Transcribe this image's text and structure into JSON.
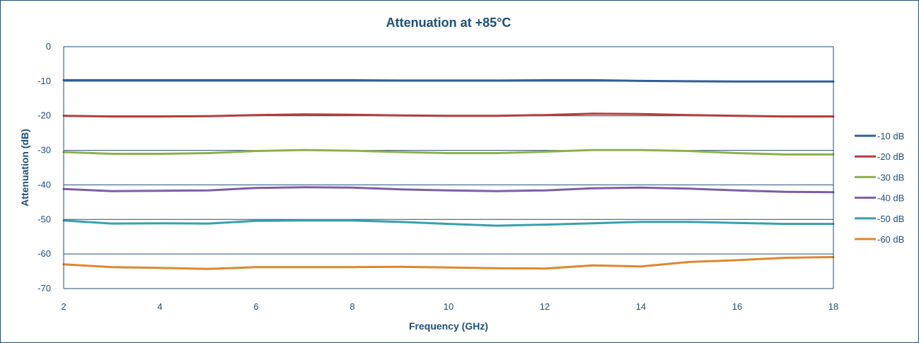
{
  "chart_data": {
    "type": "line",
    "title": "Attenuation at +85°C",
    "xlabel": "Frequency (GHz)",
    "ylabel": "Attenuation (dB)",
    "xlim": [
      2,
      18
    ],
    "ylim": [
      -70,
      0
    ],
    "xticks": [
      2,
      4,
      6,
      8,
      10,
      12,
      14,
      16,
      18
    ],
    "yticks": [
      0,
      -10,
      -20,
      -30,
      -40,
      -50,
      -60,
      -70
    ],
    "grid": "horizontal",
    "legend_position": "right",
    "x": [
      2,
      3,
      4,
      5,
      6,
      7,
      8,
      9,
      10,
      11,
      12,
      13,
      14,
      15,
      16,
      17,
      18
    ],
    "series": [
      {
        "name": "-10 dB",
        "color": "#2e5f9a",
        "values": [
          -9.7,
          -9.7,
          -9.7,
          -9.7,
          -9.7,
          -9.7,
          -9.7,
          -9.8,
          -9.8,
          -9.8,
          -9.7,
          -9.7,
          -9.9,
          -10.0,
          -10.1,
          -10.1,
          -10.1
        ]
      },
      {
        "name": "-20 dB",
        "color": "#b43c3c",
        "values": [
          -20.0,
          -20.2,
          -20.2,
          -20.1,
          -19.8,
          -19.6,
          -19.7,
          -19.9,
          -20.0,
          -20.0,
          -19.8,
          -19.4,
          -19.5,
          -19.8,
          -20.0,
          -20.2,
          -20.2
        ]
      },
      {
        "name": "-30 dB",
        "color": "#8db14a",
        "values": [
          -30.5,
          -31.0,
          -31.0,
          -30.8,
          -30.2,
          -29.9,
          -30.1,
          -30.5,
          -30.8,
          -30.8,
          -30.4,
          -29.9,
          -29.9,
          -30.2,
          -30.8,
          -31.2,
          -31.2
        ]
      },
      {
        "name": "-40 dB",
        "color": "#7b5ea7",
        "values": [
          -41.2,
          -41.8,
          -41.7,
          -41.6,
          -40.9,
          -40.7,
          -40.8,
          -41.3,
          -41.6,
          -41.8,
          -41.6,
          -41.0,
          -40.8,
          -41.1,
          -41.6,
          -42.0,
          -42.1
        ]
      },
      {
        "name": "-50 dB",
        "color": "#36a0b0",
        "values": [
          -50.3,
          -51.2,
          -51.1,
          -51.2,
          -50.4,
          -50.3,
          -50.3,
          -50.7,
          -51.3,
          -51.8,
          -51.5,
          -51.1,
          -50.7,
          -50.7,
          -51.0,
          -51.3,
          -51.3
        ]
      },
      {
        "name": "-60 dB",
        "color": "#e0862f",
        "values": [
          -63.0,
          -63.8,
          -64.0,
          -64.3,
          -63.8,
          -63.8,
          -63.8,
          -63.7,
          -63.9,
          -64.1,
          -64.2,
          -63.3,
          -63.6,
          -62.3,
          -61.8,
          -61.1,
          -60.9
        ]
      }
    ]
  }
}
